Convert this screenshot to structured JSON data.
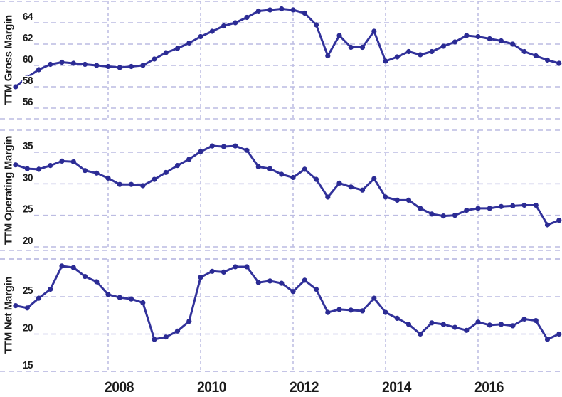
{
  "chart_data": {
    "type": "line",
    "title": "",
    "description": "Three stacked quarterly TTM margin line charts sharing one x axis (years 2006-2017)",
    "x_start": 2006,
    "x_step": 0.25,
    "x_ticks": [
      "2008",
      "2010",
      "2012",
      "2014",
      "2016"
    ],
    "x_tick_years": [
      2008,
      2010,
      2012,
      2014,
      2016
    ],
    "legend": "none",
    "grid": "dashed",
    "line_color": "#32329b",
    "dot_color": "#2b2b94",
    "grid_color": "#bcbce2",
    "text_color": "#1b1b1b",
    "charts": [
      {
        "ylabel": "TTM Gross Margin",
        "yticks": [
          64,
          62,
          60,
          58,
          56
        ],
        "ylim": [
          55,
          66
        ],
        "values": [
          58.0,
          58.9,
          59.6,
          60.1,
          60.3,
          60.2,
          60.1,
          60.0,
          59.9,
          59.8,
          59.9,
          60.0,
          60.6,
          61.2,
          61.6,
          62.1,
          62.7,
          63.2,
          63.7,
          64.0,
          64.5,
          65.1,
          65.2,
          65.3,
          65.2,
          64.9,
          63.8,
          60.9,
          62.8,
          61.7,
          61.7,
          63.2,
          60.4,
          60.8,
          61.3,
          61.0,
          61.3,
          61.8,
          62.2,
          62.8,
          62.7,
          62.5,
          62.3,
          62.0,
          61.3,
          60.9,
          60.5,
          60.2
        ]
      },
      {
        "ylabel": "TTM Operating Margin",
        "yticks": [
          35,
          30,
          25,
          20
        ],
        "ylim": [
          19.4,
          38.5
        ],
        "values": [
          33.0,
          32.4,
          32.3,
          32.9,
          33.6,
          33.5,
          32.1,
          31.7,
          30.9,
          29.9,
          29.9,
          29.7,
          30.7,
          31.8,
          32.9,
          33.9,
          35.1,
          36.0,
          35.9,
          36.0,
          35.3,
          32.7,
          32.4,
          31.5,
          31.0,
          32.3,
          30.7,
          27.9,
          30.1,
          29.5,
          29.0,
          30.8,
          27.9,
          27.4,
          27.4,
          26.1,
          25.2,
          24.9,
          25.0,
          25.8,
          26.1,
          26.1,
          26.4,
          26.5,
          26.6,
          26.6,
          23.5,
          24.2
        ]
      },
      {
        "ylabel": "TTM Net Margin",
        "yticks": [
          25,
          20,
          15
        ],
        "ylim": [
          15,
          30
        ],
        "values": [
          23.8,
          23.5,
          24.8,
          26.0,
          29.1,
          28.9,
          27.7,
          27.0,
          25.3,
          24.9,
          24.7,
          24.2,
          19.3,
          19.6,
          20.4,
          21.7,
          27.6,
          28.4,
          28.3,
          29.0,
          29.0,
          26.9,
          27.1,
          26.8,
          25.7,
          27.2,
          26.0,
          22.9,
          23.3,
          23.2,
          23.1,
          24.8,
          22.9,
          22.1,
          21.3,
          20.0,
          21.5,
          21.3,
          20.9,
          20.5,
          21.6,
          21.2,
          21.3,
          21.1,
          22.0,
          21.8,
          19.3,
          20.0
        ]
      }
    ]
  }
}
